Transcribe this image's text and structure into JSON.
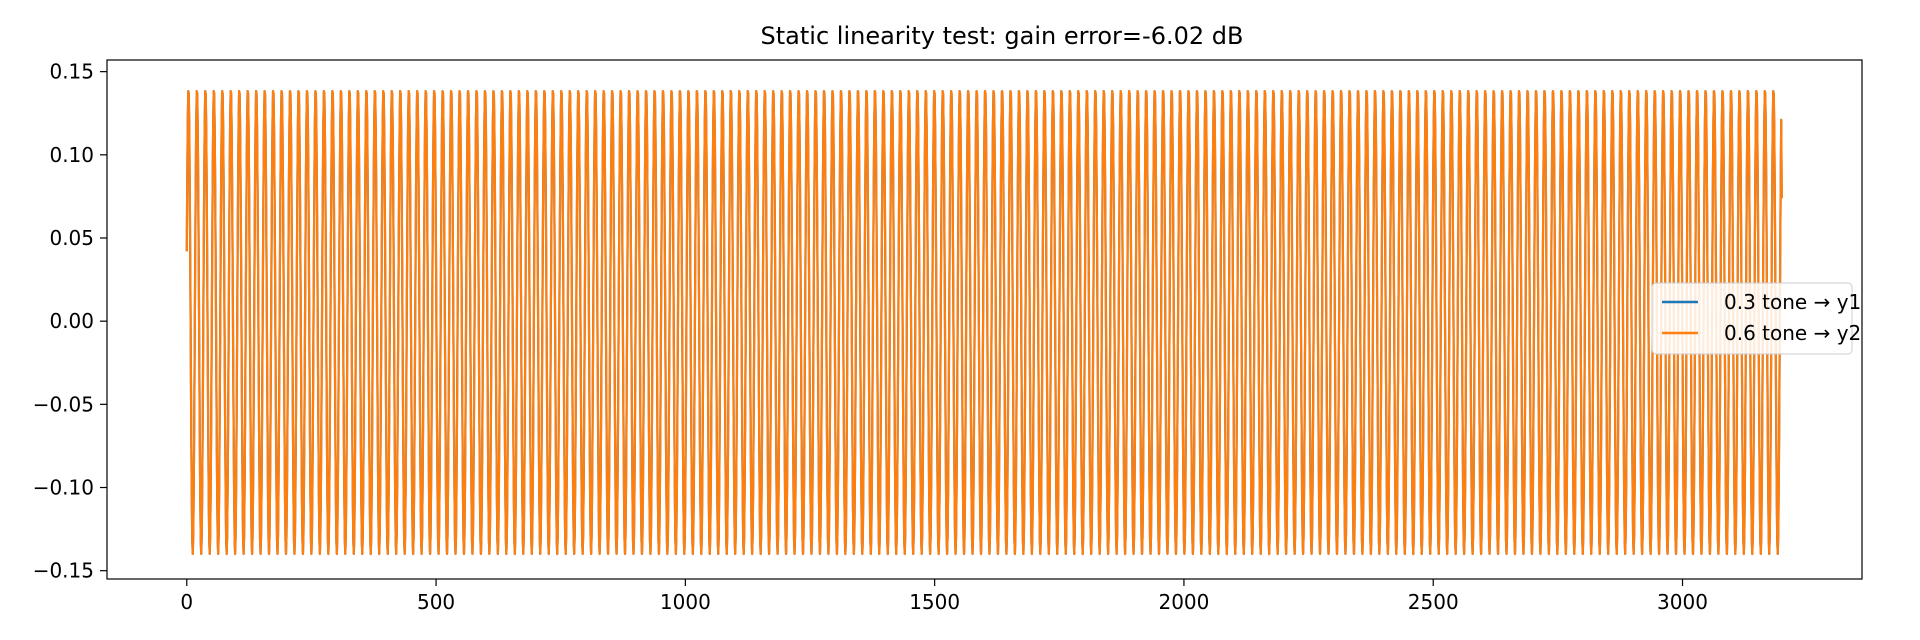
{
  "chart_data": {
    "type": "line",
    "title": "Static linearity test: gain error=-6.02 dB",
    "xlabel": "",
    "ylabel": "",
    "xlim": [
      -160,
      3360
    ],
    "ylim": [
      -0.155,
      0.157
    ],
    "xticks": [
      0,
      500,
      1000,
      1500,
      2000,
      2500,
      3000
    ],
    "xtick_labels": [
      "0",
      "500",
      "1000",
      "1500",
      "2000",
      "2500",
      "3000"
    ],
    "yticks": [
      -0.15,
      -0.1,
      -0.05,
      0.0,
      0.05,
      0.1,
      0.15
    ],
    "ytick_labels": [
      "−0.15",
      "−0.10",
      "−0.05",
      "0.00",
      "0.05",
      "0.10",
      "0.15"
    ],
    "grid": false,
    "legend_position": "center-right",
    "series": [
      {
        "name": "0.3 tone → y1",
        "color": "#1f77b4",
        "x_start": 0,
        "x_end": 3199,
        "amplitude": 0.14,
        "period_samples": 17,
        "start_value": 0.042,
        "end_value": 0.074
      },
      {
        "name": "0.6 tone → y2",
        "color": "#ff7f0e",
        "x_start": 0,
        "x_end": 3199,
        "amplitude": 0.14,
        "period_samples": 17,
        "start_value": 0.042,
        "end_value": 0.074
      }
    ]
  }
}
